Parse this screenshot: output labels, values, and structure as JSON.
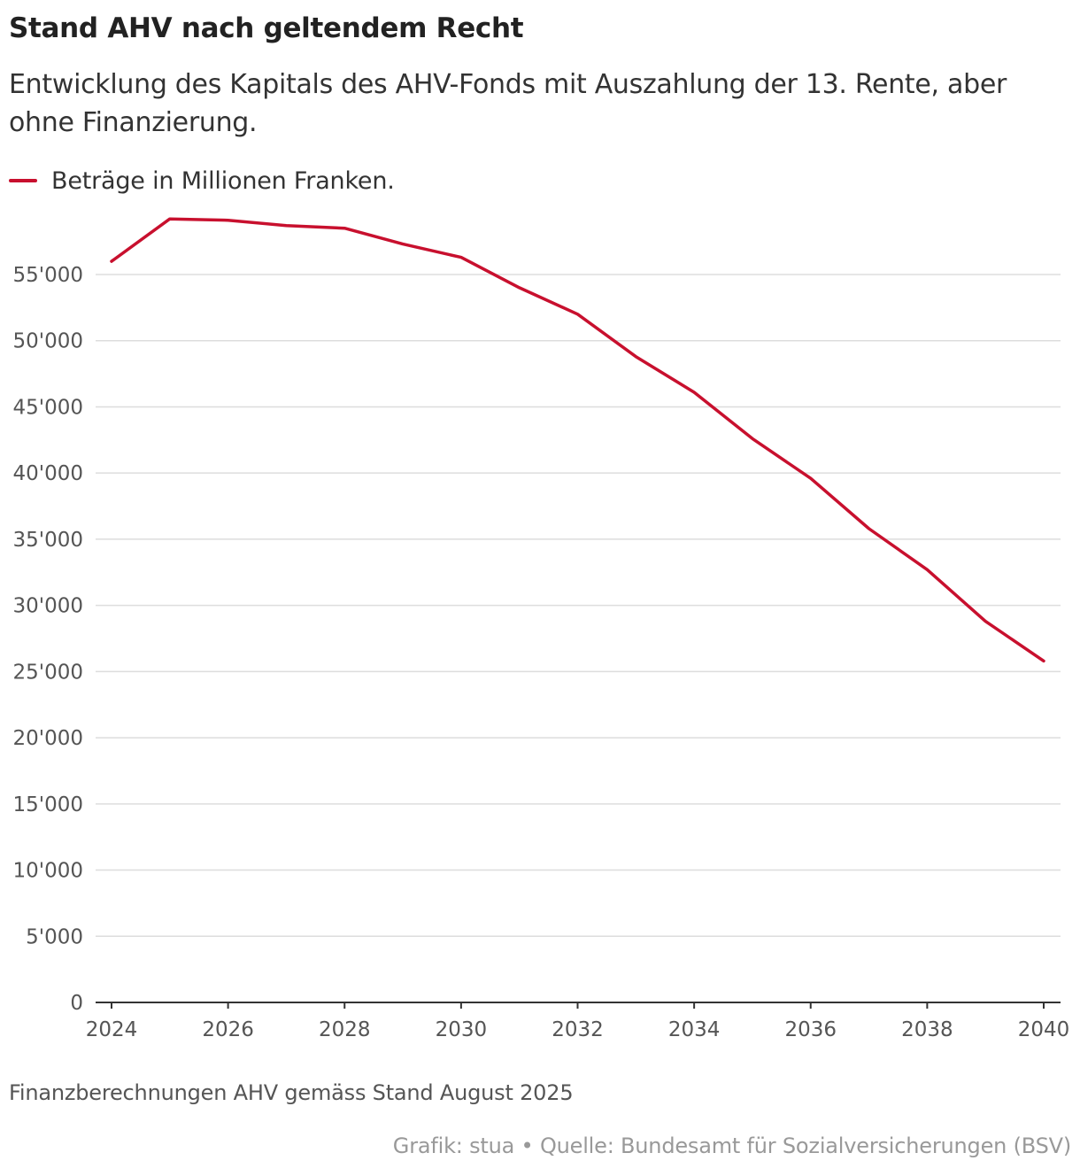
{
  "header": {
    "title": "Stand AHV nach geltendem Recht",
    "subtitle": "Entwicklung des Kapitals des AHV-Fonds mit Auszahlung der 13. Rente, aber ohne Finanzierung."
  },
  "footer": {
    "note": "Finanzberechnungen AHV gemäss Stand August 2025",
    "source": "Grafik: stua • Quelle: Bundesamt für Sozialversicherungen (BSV)"
  },
  "colors": {
    "series": "#c8102e",
    "grid": "#dddddd",
    "axis": "#333333"
  },
  "chart_data": {
    "type": "line",
    "title": "Stand AHV nach geltendem Recht",
    "subtitle": "Entwicklung des Kapitals des AHV-Fonds mit Auszahlung der 13. Rente, aber ohne Finanzierung.",
    "xlabel": "",
    "ylabel": "",
    "x": [
      2024,
      2025,
      2026,
      2027,
      2028,
      2029,
      2030,
      2031,
      2032,
      2033,
      2034,
      2035,
      2036,
      2037,
      2038,
      2039,
      2040
    ],
    "series": [
      {
        "name": "Beträge in Millionen Franken.",
        "color": "#c8102e",
        "values": [
          56000,
          59200,
          59100,
          58700,
          58500,
          57300,
          56300,
          54000,
          52000,
          48800,
          46100,
          42600,
          39600,
          35800,
          32700,
          28800,
          25800
        ]
      }
    ],
    "yticks": [
      0,
      5000,
      10000,
      15000,
      20000,
      25000,
      30000,
      35000,
      40000,
      45000,
      50000,
      55000
    ],
    "ytick_labels": [
      "0",
      "5'000",
      "10'000",
      "15'000",
      "20'000",
      "25'000",
      "30'000",
      "35'000",
      "40'000",
      "45'000",
      "50'000",
      "55'000"
    ],
    "xticks": [
      2024,
      2026,
      2028,
      2030,
      2032,
      2034,
      2036,
      2038,
      2040
    ],
    "xtick_labels": [
      "2024",
      "2026",
      "2028",
      "2030",
      "2032",
      "2034",
      "2036",
      "2038",
      "2040"
    ],
    "xlim": [
      2024,
      2040
    ],
    "ylim": [
      0,
      59200
    ],
    "grid": true,
    "legend": "top-left"
  }
}
